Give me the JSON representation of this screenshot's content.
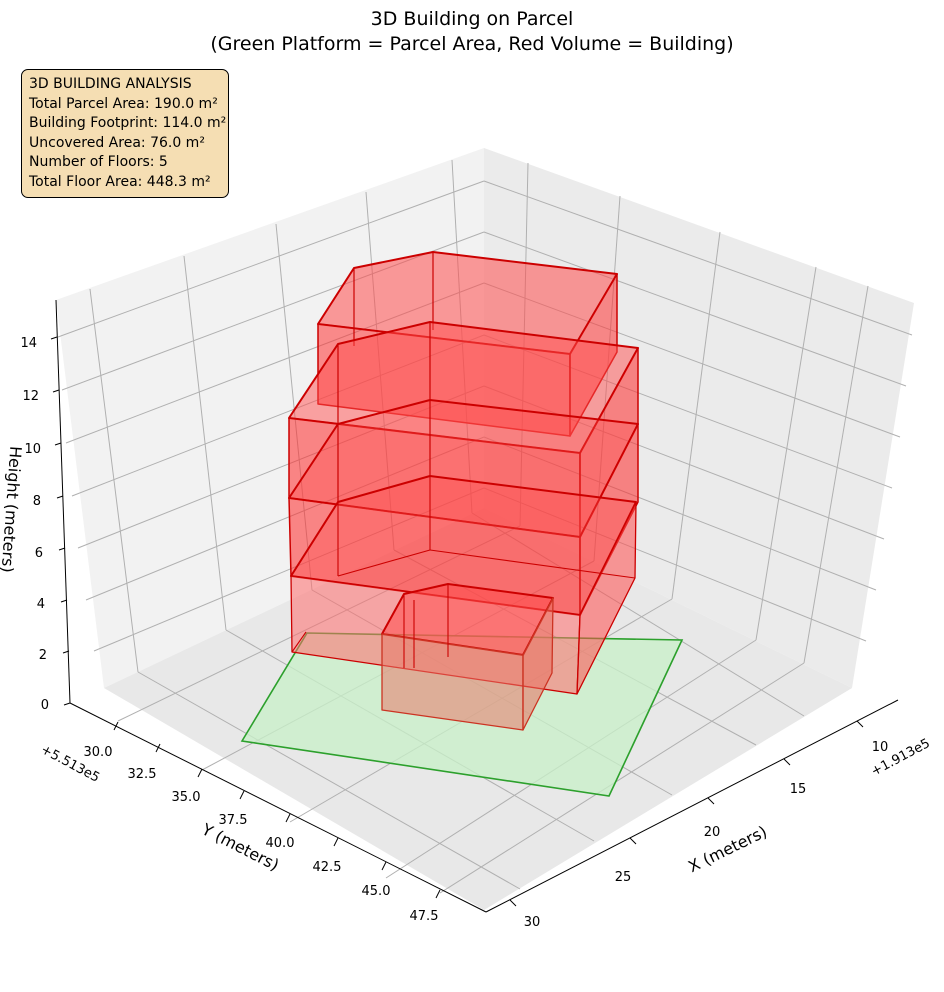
{
  "chart_data": {
    "type": "3d-polygons",
    "title_line1": "3D Building on Parcel",
    "title_line2": "(Green Platform = Parcel Area, Red Volume = Building)",
    "xlabel": "X (meters)",
    "ylabel": "Y (meters)",
    "zlabel": "Height (meters)",
    "x_offset_label": "+1.913e5",
    "y_offset_label": "+5.513e5",
    "x_ticks": [
      "10",
      "15",
      "20",
      "25",
      "30"
    ],
    "y_ticks": [
      "30.0",
      "32.5",
      "35.0",
      "37.5",
      "40.0",
      "42.5",
      "45.0",
      "47.5"
    ],
    "z_ticks": [
      "0",
      "2",
      "4",
      "6",
      "8",
      "10",
      "12",
      "14"
    ],
    "info_box": [
      "3D BUILDING ANALYSIS",
      "Total Parcel Area: 190.0 m²",
      "Building Footprint: 114.0 m²",
      "Uncovered Area: 76.0 m²",
      "Number of Floors: 5",
      "Total Floor Area: 448.3 m²"
    ],
    "colors": {
      "parcel_fill": "#c8f0c8",
      "parcel_edge": "#2ca02c",
      "building_fill": "#ff0000",
      "building_edge": "#cc0000",
      "pane": "#f2f2f2",
      "grid": "#b0b0b0",
      "info_box_bg": "#f5deb3"
    }
  }
}
